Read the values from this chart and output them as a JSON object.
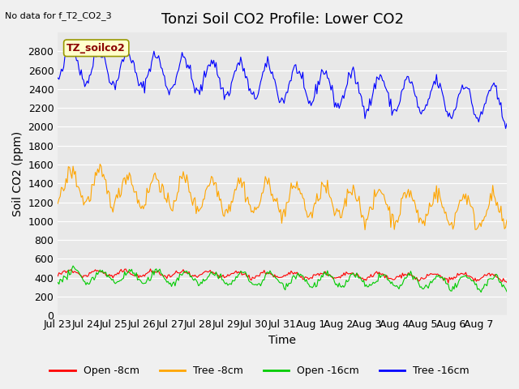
{
  "title": "Tonzi Soil CO2 Profile: Lower CO2",
  "subtitle": "No data for f_T2_CO2_3",
  "ylabel": "Soil CO2 (ppm)",
  "xlabel": "Time",
  "annotation": "TZ_soilco2",
  "ylim": [
    0,
    3000
  ],
  "yticks": [
    0,
    200,
    400,
    600,
    800,
    1000,
    1200,
    1400,
    1600,
    1800,
    2000,
    2200,
    2400,
    2600,
    2800
  ],
  "xtick_labels": [
    "Jul 23",
    "Jul 24",
    "Jul 25",
    "Jul 26",
    "Jul 27",
    "Jul 28",
    "Jul 29",
    "Jul 30",
    "Jul 31",
    "Aug 1",
    "Aug 2",
    "Aug 3",
    "Aug 4",
    "Aug 5",
    "Aug 6",
    "Aug 7"
  ],
  "legend_entries": [
    "Open -8cm",
    "Tree -8cm",
    "Open -16cm",
    "Tree -16cm"
  ],
  "legend_colors": [
    "#ff0000",
    "#ffa500",
    "#00cc00",
    "#0000ff"
  ],
  "line_colors": {
    "open_8cm": "#ff0000",
    "tree_8cm": "#ffa500",
    "open_16cm": "#00cc00",
    "tree_16cm": "#0000ff"
  },
  "plot_bg_color": "#e8e8e8",
  "fig_bg_color": "#f0f0f0",
  "title_fontsize": 13,
  "axis_label_fontsize": 10,
  "tick_fontsize": 9,
  "legend_fontsize": 9,
  "n_days": 16
}
